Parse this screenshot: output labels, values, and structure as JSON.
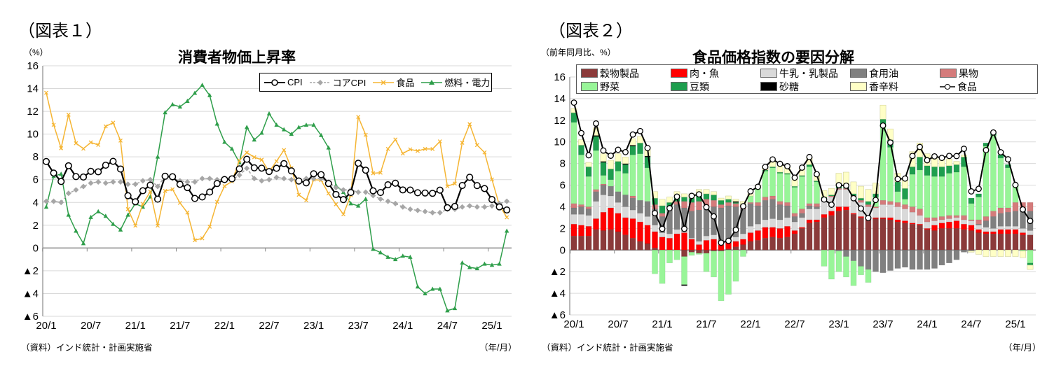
{
  "chart1": {
    "figure_label": "（図表１）",
    "unit": "（%）",
    "source": "（資料）インド統計・計画実施省",
    "x_unit": "（年/月）"
  },
  "chart2": {
    "figure_label": "（図表２）",
    "unit": "（前年同月比、%）",
    "source": "（資料）インド統計・計画実施省",
    "x_unit": "（年/月）"
  },
  "chart_data": [
    {
      "type": "line",
      "title": "消費者物価上昇率",
      "ylabel": "%",
      "xlabel": "年/月",
      "ylim": [
        -6,
        16
      ],
      "y_ticks": [
        16,
        14,
        12,
        10,
        8,
        6,
        4,
        2,
        0,
        -2,
        -4,
        -6
      ],
      "y_tick_labels": [
        "16",
        "14",
        "12",
        "10",
        "8",
        "6",
        "4",
        "2",
        "0",
        "▲2",
        "▲4",
        "▲6"
      ],
      "x_start": "20/1",
      "x_tick_labels": [
        "20/1",
        "20/7",
        "21/1",
        "21/7",
        "22/1",
        "22/7",
        "23/1",
        "23/7",
        "24/1",
        "24/7",
        "25/1"
      ],
      "x_tick_indices": [
        0,
        6,
        12,
        18,
        24,
        30,
        36,
        42,
        48,
        54,
        60
      ],
      "grid": true,
      "legend_position": "top-right",
      "series": [
        {
          "name": "CPI",
          "color": "#000000",
          "marker": "circle",
          "values": [
            7.59,
            6.58,
            5.84,
            7.22,
            6.27,
            6.23,
            6.73,
            6.69,
            7.27,
            7.61,
            6.93,
            4.59,
            4.06,
            5.03,
            5.52,
            4.29,
            6.3,
            6.26,
            5.59,
            5.3,
            4.35,
            4.48,
            4.91,
            5.66,
            6.01,
            6.07,
            6.95,
            7.79,
            7.04,
            7.01,
            6.71,
            7.0,
            7.41,
            6.77,
            5.88,
            5.72,
            6.52,
            6.44,
            5.66,
            4.7,
            4.25,
            4.87,
            7.44,
            6.83,
            5.02,
            4.87,
            5.55,
            5.69,
            5.1,
            5.09,
            4.85,
            4.83,
            4.8,
            5.08,
            3.54,
            3.65,
            5.49,
            6.21,
            5.48,
            5.22,
            4.26,
            3.61,
            3.34
          ]
        },
        {
          "name": "コアCPI",
          "color": "#A6A6A6",
          "marker": "diamond",
          "values": [
            4.1,
            4.1,
            4.0,
            4.8,
            5.1,
            5.4,
            5.7,
            5.8,
            5.7,
            5.8,
            5.8,
            5.6,
            5.6,
            5.9,
            6.0,
            5.4,
            6.3,
            6.1,
            5.9,
            5.8,
            5.8,
            6.1,
            6.1,
            6.0,
            6.0,
            6.0,
            6.4,
            7.0,
            6.1,
            5.9,
            6.0,
            6.2,
            6.1,
            6.0,
            6.0,
            6.1,
            6.1,
            6.1,
            5.8,
            5.3,
            5.1,
            5.1,
            4.9,
            4.9,
            4.6,
            4.3,
            4.1,
            3.9,
            3.6,
            3.4,
            3.3,
            3.2,
            3.1,
            3.1,
            3.4,
            3.4,
            3.6,
            3.7,
            3.6,
            3.6,
            3.7,
            3.9,
            4.1
          ]
        },
        {
          "name": "食品",
          "color": "#F5B533",
          "marker": "x",
          "values": [
            13.63,
            10.81,
            8.76,
            11.7,
            9.2,
            8.72,
            9.27,
            9.05,
            10.68,
            11.0,
            9.43,
            3.41,
            1.96,
            3.87,
            4.94,
            1.96,
            5.01,
            5.15,
            3.96,
            3.11,
            0.68,
            0.85,
            1.87,
            4.05,
            5.43,
            5.85,
            7.68,
            8.38,
            7.97,
            7.75,
            6.69,
            7.62,
            8.6,
            7.01,
            4.67,
            4.19,
            6.0,
            5.95,
            4.79,
            3.84,
            2.96,
            4.63,
            11.51,
            9.94,
            6.56,
            6.61,
            8.7,
            9.53,
            8.3,
            8.66,
            8.52,
            8.7,
            8.69,
            9.36,
            5.42,
            5.66,
            9.24,
            10.87,
            9.04,
            8.39,
            6.02,
            3.75,
            2.69
          ]
        },
        {
          "name": "燃料・電力",
          "color": "#2E9E4A",
          "marker": "triangle",
          "values": [
            3.6,
            6.3,
            6.5,
            2.9,
            1.5,
            0.4,
            2.7,
            3.2,
            2.8,
            2.1,
            1.6,
            2.9,
            3.9,
            3.6,
            4.5,
            8.0,
            11.9,
            12.6,
            12.4,
            12.9,
            13.6,
            14.3,
            13.4,
            10.9,
            9.3,
            8.7,
            7.5,
            10.6,
            9.5,
            10.1,
            11.8,
            10.8,
            10.4,
            10.0,
            10.6,
            10.8,
            10.8,
            9.9,
            8.8,
            5.5,
            4.9,
            3.9,
            3.7,
            4.3,
            -0.1,
            -0.4,
            -0.8,
            -1.0,
            -0.7,
            -0.8,
            -3.4,
            -4.0,
            -3.6,
            -3.6,
            -5.5,
            -5.3,
            -1.3,
            -1.7,
            -1.8,
            -1.4,
            -1.5,
            -1.4,
            1.5
          ]
        }
      ]
    },
    {
      "type": "bar",
      "stacked": true,
      "title": "食品価格指数の要因分解",
      "ylabel": "前年同月比、%",
      "xlabel": "年/月",
      "ylim": [
        -6,
        16
      ],
      "y_ticks": [
        16,
        14,
        12,
        10,
        8,
        6,
        4,
        2,
        0,
        -2,
        -4,
        -6
      ],
      "y_tick_labels": [
        "16",
        "14",
        "12",
        "10",
        "8",
        "6",
        "4",
        "2",
        "0",
        "▲2",
        "▲4",
        "▲6"
      ],
      "x_start": "20/1",
      "x_tick_labels": [
        "20/1",
        "20/7",
        "21/1",
        "21/7",
        "22/1",
        "22/7",
        "23/1",
        "23/7",
        "24/1",
        "24/7",
        "25/1"
      ],
      "x_tick_indices": [
        0,
        6,
        12,
        18,
        24,
        30,
        36,
        42,
        48,
        54,
        60
      ],
      "grid": true,
      "legend_position": "top",
      "series": [
        {
          "name": "穀物製品",
          "color": "#8B3A3A",
          "values": [
            1.3,
            1.3,
            1.3,
            1.9,
            1.8,
            1.9,
            1.7,
            1.4,
            1.1,
            0.8,
            0.6,
            0.2,
            0,
            0,
            0,
            -0.6,
            -0.2,
            -0.3,
            -0.3,
            -0.1,
            -0.1,
            0.1,
            0.3,
            0.5,
            0.8,
            0.9,
            1.1,
            1.2,
            1.1,
            1.2,
            1.5,
            2.0,
            2.5,
            2.6,
            3.0,
            3.2,
            3.6,
            3.7,
            3.3,
            3.0,
            2.9,
            2.9,
            2.9,
            2.8,
            2.6,
            2.5,
            2.4,
            2.3,
            1.9,
            1.8,
            2.0,
            2.0,
            2.0,
            1.9,
            1.8,
            1.6,
            1.5,
            1.5,
            1.5,
            1.5,
            1.5,
            1.4,
            1.4
          ]
        },
        {
          "name": "肉・魚",
          "color": "#FF0000",
          "values": [
            1.1,
            1.0,
            0.9,
            1.0,
            1.7,
            2.0,
            1.7,
            1.6,
            1.8,
            1.8,
            1.7,
            1.5,
            1.2,
            1.1,
            1.5,
            1.6,
            1.0,
            0.5,
            0.9,
            1.0,
            0.5,
            0.6,
            0.5,
            0.5,
            0.8,
            0.9,
            1.0,
            0.9,
            0.9,
            1.0,
            0.3,
            0.1,
            0.3,
            0.2,
            0.3,
            0.4,
            0.4,
            0.3,
            0.1,
            0.1,
            0.1,
            0.1,
            0.1,
            0.2,
            0.2,
            0.2,
            0.1,
            0.1,
            0.1,
            0.5,
            0.5,
            0.6,
            0.7,
            0.5,
            0.5,
            0.3,
            0.2,
            0.2,
            0.4,
            0.4,
            0.4,
            0.2,
            0.0
          ]
        },
        {
          "name": "牛乳・乳製品",
          "color": "#D9D9D9",
          "values": [
            0.9,
            1.0,
            1.0,
            1.6,
            1.6,
            1.1,
            1.0,
            1.0,
            0.8,
            0.8,
            0.8,
            0.6,
            0.4,
            0.4,
            0.4,
            0.1,
            0.1,
            0.3,
            0.4,
            0.4,
            0.1,
            0.1,
            0.4,
            0.5,
            0.6,
            0.6,
            0.7,
            0.8,
            0.8,
            0.8,
            0.8,
            0.9,
            1.0,
            1.0,
            1.2,
            1.3,
            1.6,
            1.6,
            1.5,
            1.3,
            1.0,
            0.9,
            1.2,
            1.2,
            1.2,
            1.1,
            1.0,
            0.8,
            0.6,
            0.4,
            0.3,
            0.3,
            0.3,
            0.4,
            0.4,
            0.4,
            0.4,
            0.3,
            0.3,
            0.3,
            0.3,
            0.4,
            0.4
          ]
        },
        {
          "name": "食用油",
          "color": "#808080",
          "values": [
            0.6,
            0.7,
            0.6,
            0.9,
            0.9,
            0.9,
            1.0,
            1.1,
            1.1,
            1.2,
            1.4,
            1.5,
            1.5,
            2.2,
            2.3,
            2.2,
            2.5,
            2.9,
            2.7,
            2.6,
            3.3,
            3.3,
            2.8,
            2.3,
            2.1,
            1.7,
            1.8,
            1.8,
            1.4,
            1.1,
            0.5,
            0.4,
            0.3,
            0.2,
            0.2,
            0.0,
            -0.1,
            -0.6,
            -1.0,
            -1.5,
            -1.8,
            -2.0,
            -2.1,
            -1.9,
            -1.7,
            -1.6,
            -1.8,
            -1.8,
            -1.8,
            -1.7,
            -1.4,
            -1.2,
            -0.9,
            -0.2,
            -0.1,
            0.1,
            0.6,
            1.1,
            1.2,
            1.3,
            1.4,
            1.9,
            1.8
          ]
        },
        {
          "name": "果物",
          "color": "#D47B7B",
          "values": [
            0.4,
            0.2,
            0.2,
            0.2,
            0.1,
            0,
            0,
            0,
            0.2,
            0,
            0,
            0.4,
            0.3,
            0.3,
            0.3,
            0.6,
            0.8,
            0.8,
            0.7,
            0.6,
            0.3,
            0.3,
            0.3,
            0.2,
            0.1,
            0.3,
            0.3,
            0.3,
            0.3,
            0.3,
            0.3,
            0.4,
            0.2,
            0.3,
            0.1,
            0.1,
            0.1,
            0.1,
            0.1,
            0.2,
            0.2,
            0.1,
            0.4,
            0.3,
            0.4,
            0.4,
            0.5,
            0.6,
            0.4,
            0.3,
            0.3,
            0.3,
            0.2,
            0.4,
            0.1,
            0.4,
            0.4,
            0.5,
            0.5,
            0.4,
            0.8,
            0.5,
            0.8
          ]
        },
        {
          "name": "野菜",
          "color": "#98F598",
          "values": [
            7.5,
            4.6,
            2.8,
            3.6,
            0.8,
            0.6,
            1.9,
            2.0,
            3.8,
            4.3,
            3.1,
            -2.2,
            -3.1,
            -1.2,
            -0.9,
            -2.6,
            -0.3,
            -0.1,
            -1.7,
            -2.4,
            -4.6,
            -4.1,
            -2.9,
            -0.6,
            0.6,
            1.3,
            2.4,
            2.6,
            2.6,
            2.6,
            2.4,
            3.0,
            3.4,
            2.0,
            -1.5,
            -2.7,
            -1.9,
            -1.9,
            -2.3,
            -0.8,
            -1.2,
            0.9,
            7.0,
            5.0,
            1.0,
            0.5,
            3.0,
            3.6,
            3.9,
            3.8,
            3.7,
            3.9,
            4.0,
            4.5,
            1.5,
            2.1,
            6.5,
            7.0,
            4.6,
            3.7,
            1.5,
            -0.1,
            -1.2
          ]
        },
        {
          "name": "豆類",
          "color": "#1E9E4E",
          "values": [
            0.9,
            0.9,
            0.9,
            1.3,
            1.2,
            1.0,
            0.9,
            0.8,
            0.8,
            1.0,
            1.0,
            0.6,
            0.7,
            0.4,
            0.4,
            0.4,
            0.4,
            0.6,
            0.5,
            0.5,
            0.4,
            0.3,
            0.1,
            0,
            0,
            0.1,
            0.1,
            0.1,
            0.1,
            0.1,
            0.1,
            0.1,
            0.2,
            0.1,
            0.1,
            0.1,
            0.2,
            0.2,
            0.2,
            0.2,
            0.3,
            0.3,
            0.5,
            0.7,
            0.9,
            1.0,
            0.7,
            1.2,
            0.9,
            0.9,
            0.9,
            0.7,
            0.7,
            0.9,
            0.5,
            0.3,
            0.3,
            0.3,
            0.3,
            0.3,
            0.2,
            0,
            -0.2
          ]
        },
        {
          "name": "砂糖",
          "color": "#000000",
          "values": [
            0,
            0,
            0,
            0.1,
            0.1,
            0,
            0,
            0.1,
            0.1,
            0,
            0.1,
            0,
            0,
            0,
            0,
            -0.1,
            0,
            0,
            0,
            0,
            0,
            0,
            0.1,
            0.1,
            0,
            0,
            0,
            0,
            0,
            0,
            0,
            0,
            0,
            0,
            0,
            0,
            0,
            0,
            0,
            0,
            0,
            0,
            0,
            0,
            0,
            0,
            0,
            0,
            0,
            0,
            0,
            0,
            0,
            0,
            0,
            0,
            0,
            0,
            0,
            0,
            0,
            0,
            0
          ]
        },
        {
          "name": "香辛料",
          "color": "#FFFFC6",
          "values": [
            0.4,
            0.5,
            0.4,
            0.7,
            0.7,
            0.8,
            0.7,
            0.6,
            0.6,
            0.6,
            0.6,
            0.6,
            0.6,
            0.5,
            0.5,
            0.3,
            0.4,
            0.5,
            0.4,
            0.3,
            0.2,
            0.3,
            0.2,
            0.4,
            0.2,
            0.2,
            0.3,
            0.6,
            0.6,
            0.6,
            0.6,
            0.7,
            0.7,
            0.5,
            0.6,
            0.6,
            1.2,
            1.3,
            1.1,
            1.1,
            1.1,
            1.0,
            1.3,
            1.0,
            0.8,
            0.8,
            1.4,
            1.3,
            1.1,
            1.0,
            0.8,
            0.6,
            0.3,
            0.2,
            -0.1,
            -0.4,
            -0.6,
            -0.6,
            -0.6,
            -0.6,
            -0.6,
            -0.6,
            -0.4
          ]
        }
      ],
      "line_series": {
        "name": "食品",
        "color": "#000000",
        "marker": "circle",
        "values": [
          13.63,
          10.81,
          8.76,
          11.7,
          9.2,
          8.72,
          9.27,
          9.05,
          10.68,
          11.0,
          9.43,
          3.41,
          1.96,
          3.87,
          4.94,
          1.96,
          5.01,
          5.15,
          3.96,
          3.11,
          0.68,
          0.85,
          1.87,
          4.05,
          5.43,
          5.85,
          7.68,
          8.38,
          7.97,
          7.75,
          6.69,
          7.62,
          8.6,
          7.01,
          4.67,
          4.19,
          6.0,
          5.95,
          4.79,
          3.84,
          2.96,
          4.63,
          11.51,
          9.94,
          6.56,
          6.61,
          8.7,
          9.53,
          8.3,
          8.66,
          8.52,
          8.7,
          8.69,
          9.36,
          5.42,
          5.66,
          9.24,
          10.87,
          9.04,
          8.39,
          6.02,
          3.75,
          2.69
        ]
      }
    }
  ]
}
